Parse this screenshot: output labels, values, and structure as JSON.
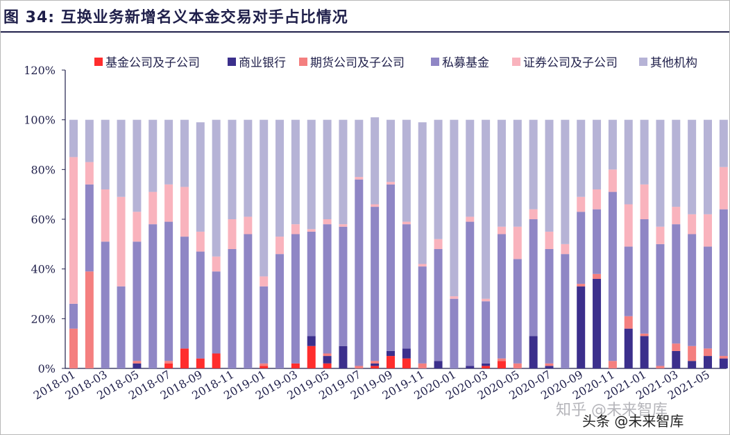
{
  "figure": {
    "title": "图 34: 互换业务新增名义本金交易对手占比情况"
  },
  "watermark": {
    "line1": "知乎 @未来智库",
    "line2": "头条 @未来智库"
  },
  "chart_data": {
    "type": "bar",
    "stacked": true,
    "ylim": [
      0,
      120
    ],
    "y_ticks": [
      "0%",
      "20%",
      "40%",
      "60%",
      "80%",
      "100%",
      "120%"
    ],
    "legend_position": "top",
    "x_tick_labels": [
      "2018-01",
      "2018-03",
      "2018-05",
      "2018-07",
      "2018-09",
      "2018-11",
      "2019-01",
      "2019-03",
      "2019-05",
      "2019-07",
      "2019-09",
      "2019-11",
      "2020-01",
      "2020-03",
      "2020-05",
      "2020-07",
      "2020-09",
      "2020-11",
      "2021-01",
      "2021-03",
      "2021-05"
    ],
    "categories": [
      "2018-01",
      "2018-02",
      "2018-03",
      "2018-04",
      "2018-05",
      "2018-06",
      "2018-07",
      "2018-08",
      "2018-09",
      "2018-10",
      "2018-11",
      "2018-12",
      "2019-01",
      "2019-02",
      "2019-03",
      "2019-04",
      "2019-05",
      "2019-06",
      "2019-07",
      "2019-08",
      "2019-09",
      "2019-10",
      "2019-11",
      "2019-12",
      "2020-01",
      "2020-02",
      "2020-03",
      "2020-04",
      "2020-05",
      "2020-06",
      "2020-07",
      "2020-08",
      "2020-09",
      "2020-10",
      "2020-11",
      "2020-12",
      "2021-01",
      "2021-02",
      "2021-03",
      "2021-04",
      "2021-05",
      "2021-06"
    ],
    "series": [
      {
        "name": "基金公司及子公司",
        "color": "#ff2d2d",
        "values": [
          0,
          0,
          0,
          0,
          0,
          0,
          2,
          8,
          4,
          6,
          0,
          0,
          1,
          0,
          2,
          9,
          2,
          0,
          0,
          1,
          5,
          4,
          0,
          0,
          0,
          0,
          1,
          3,
          0,
          0,
          0,
          0,
          0,
          0,
          0,
          0,
          0,
          0,
          0,
          0,
          0,
          0
        ]
      },
      {
        "name": "商业银行",
        "color": "#3b2f8c",
        "values": [
          0,
          0,
          0,
          0,
          2,
          0,
          0,
          0,
          0,
          0,
          0,
          0,
          0,
          0,
          0,
          4,
          3,
          9,
          0,
          1,
          2,
          4,
          0,
          3,
          0,
          1,
          1,
          0,
          0,
          13,
          1,
          0,
          33,
          36,
          0,
          16,
          13,
          0,
          7,
          3,
          5,
          4
        ]
      },
      {
        "name": "期货公司及子公司",
        "color": "#f47f7f",
        "values": [
          16,
          39,
          0,
          0,
          1,
          0,
          1,
          0,
          0,
          0,
          0,
          0,
          1,
          0,
          0,
          0,
          1,
          0,
          1,
          1,
          0,
          0,
          2,
          0,
          0,
          0,
          0,
          1,
          2,
          0,
          1,
          0,
          1,
          2,
          3,
          5,
          1,
          1,
          3,
          6,
          3,
          1
        ]
      },
      {
        "name": "私募基金",
        "color": "#8f86c5",
        "values": [
          10,
          35,
          51,
          33,
          48,
          58,
          56,
          45,
          43,
          33,
          48,
          54,
          31,
          46,
          52,
          42,
          52,
          48,
          75,
          62,
          67,
          50,
          39,
          45,
          28,
          58,
          25,
          50,
          42,
          47,
          46,
          46,
          29,
          26,
          68,
          28,
          46,
          49,
          48,
          45,
          41,
          59
        ]
      },
      {
        "name": "证券公司及子公司",
        "color": "#f9b3bd",
        "values": [
          59,
          9,
          21,
          36,
          12,
          13,
          15,
          20,
          8,
          6,
          12,
          7,
          4,
          7,
          4,
          1,
          2,
          1,
          1,
          1,
          1,
          1,
          1,
          4,
          1,
          2,
          1,
          3,
          13,
          4,
          7,
          4,
          6,
          8,
          9,
          17,
          14,
          7,
          7,
          8,
          13,
          17
        ]
      },
      {
        "name": "其他机构",
        "color": "#b6b3d6",
        "values": [
          15,
          17,
          28,
          31,
          37,
          29,
          26,
          27,
          44,
          55,
          40,
          39,
          63,
          47,
          42,
          44,
          40,
          42,
          23,
          35,
          25,
          41,
          57,
          48,
          71,
          39,
          72,
          43,
          43,
          36,
          45,
          50,
          31,
          28,
          20,
          34,
          26,
          43,
          35,
          38,
          38,
          19
        ]
      }
    ]
  }
}
